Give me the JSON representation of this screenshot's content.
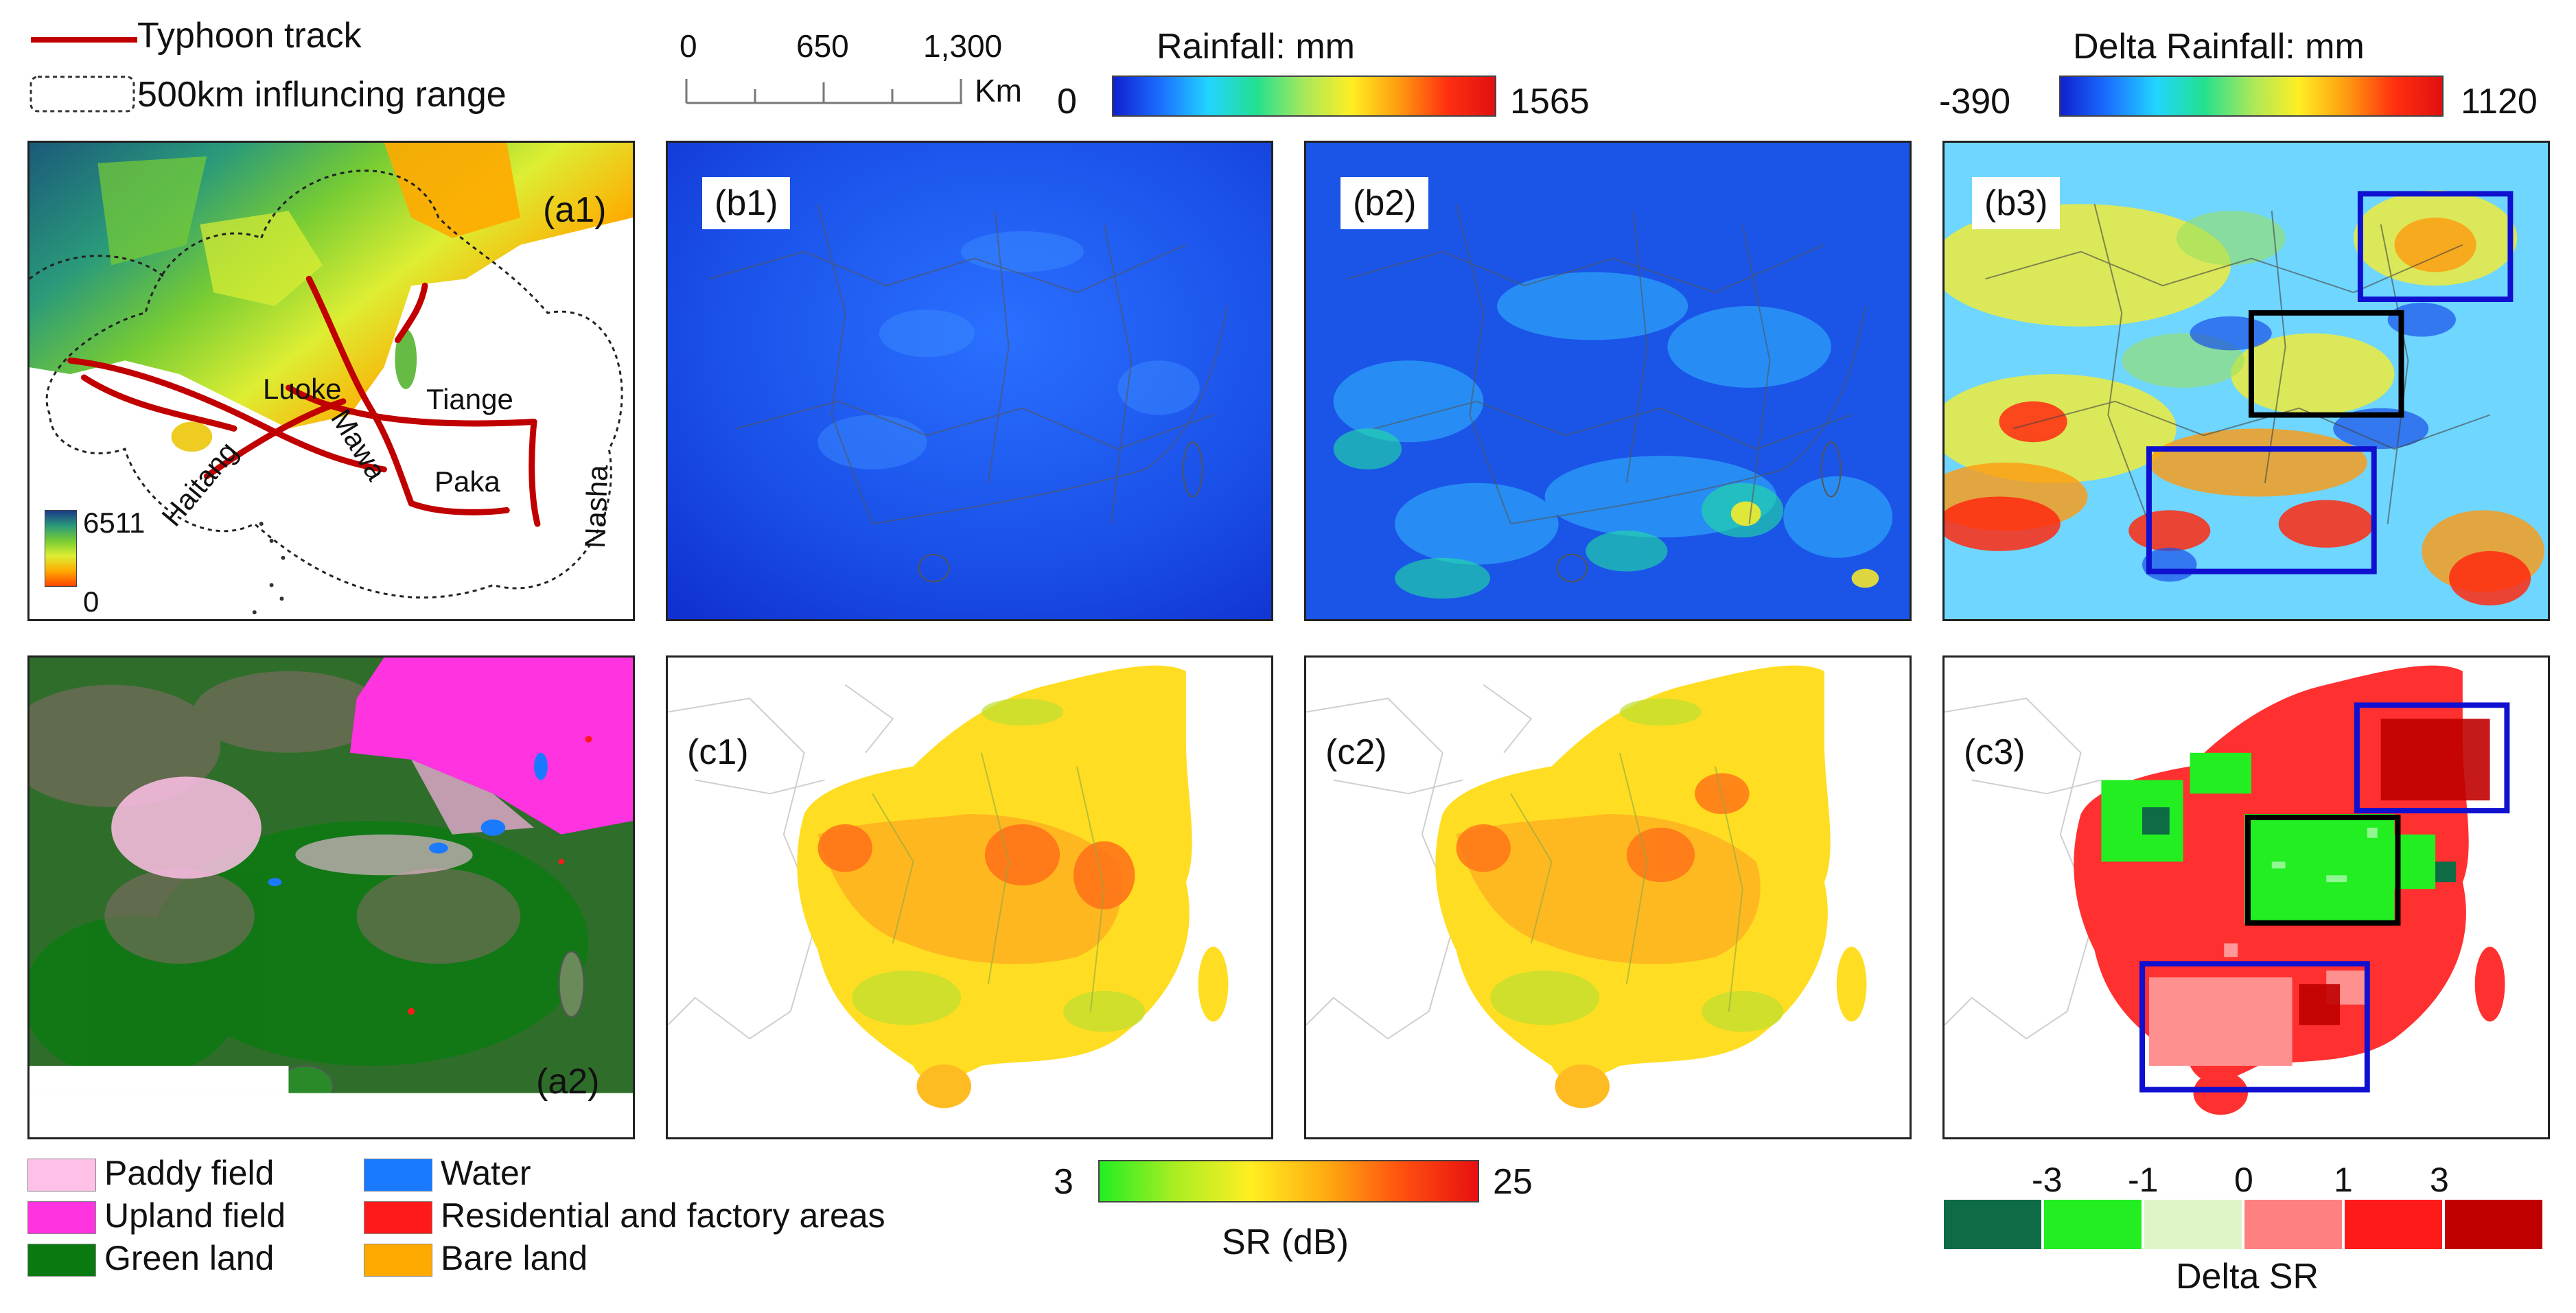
{
  "legend_top": {
    "track_label": "Typhoon track",
    "range_label": "500km influncing range",
    "track_color": "#c00000"
  },
  "scalebar": {
    "tick0": "0",
    "tick1": "650",
    "tick2": "1,300",
    "unit": "Km"
  },
  "rainfall_bar": {
    "title": "Rainfall: mm",
    "min": "0",
    "max": "1565"
  },
  "delta_rainfall_bar": {
    "title": "Delta Rainfall: mm",
    "min": "-390",
    "max": "1120"
  },
  "elevation_bar": {
    "max": "6511",
    "min": "0"
  },
  "panels": {
    "a1": "(a1)",
    "a2": "(a2)",
    "b1": "(b1)",
    "b2": "(b2)",
    "b3": "(b3)",
    "c1": "(c1)",
    "c2": "(c2)",
    "c3": "(c3)"
  },
  "typhoons": [
    "Luoke",
    "Tiange",
    "Mawa",
    "Haitang",
    "Paka",
    "Nasha"
  ],
  "landuse_legend": [
    {
      "label": "Paddy field",
      "color": "#ffc0e8"
    },
    {
      "label": "Upland field",
      "color": "#ff33e0"
    },
    {
      "label": "Green land",
      "color": "#0a7a10"
    },
    {
      "label": "Water",
      "color": "#1a7aff"
    },
    {
      "label": "Residential and factory areas",
      "color": "#ff1a1a"
    },
    {
      "label": "Bare land",
      "color": "#ffaa00"
    }
  ],
  "sr_bar": {
    "min": "3",
    "max": "25",
    "title": "SR (dB)"
  },
  "delta_sr_bar": {
    "ticks": [
      "-3",
      "-1",
      "0",
      "1",
      "3"
    ],
    "title": "Delta SR",
    "colors": [
      "#0e6b45",
      "#22ee22",
      "#dff5c8",
      "#ff8080",
      "#ff1a1a",
      "#c00000"
    ]
  }
}
